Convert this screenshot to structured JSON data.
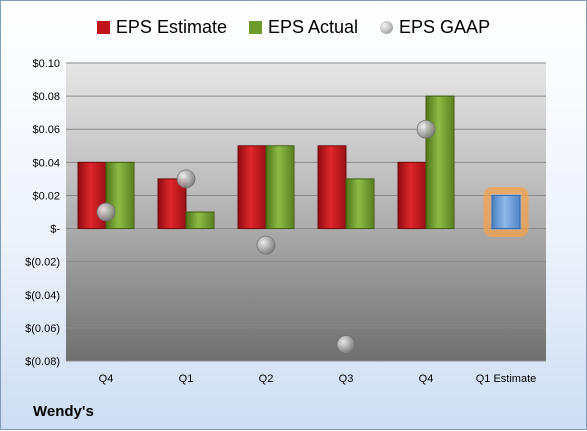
{
  "company": "Wendy's",
  "legend": {
    "estimate": "EPS Estimate",
    "actual": "EPS Actual",
    "gaap": "EPS GAAP"
  },
  "colors": {
    "estimate": "#c0141a",
    "actual": "#6e9a2a",
    "gaap": "#a8a8a8",
    "future_estimate": "#6f9fd8",
    "highlight": "#f5a04a"
  },
  "chart_data": {
    "type": "bar",
    "categories": [
      "Q4",
      "Q1",
      "Q2",
      "Q3",
      "Q4",
      "Q1 Estimate"
    ],
    "series": [
      {
        "name": "EPS Estimate",
        "values": [
          0.04,
          0.03,
          0.05,
          0.05,
          0.04,
          null
        ]
      },
      {
        "name": "EPS Actual",
        "values": [
          0.04,
          0.01,
          0.05,
          0.03,
          0.08,
          0.02
        ]
      },
      {
        "name": "EPS GAAP",
        "values": [
          0.01,
          0.03,
          -0.01,
          -0.07,
          0.06,
          null
        ]
      }
    ],
    "ylim": [
      -0.08,
      0.1
    ],
    "yticks": [
      0.1,
      0.08,
      0.06,
      0.04,
      0.02,
      0,
      -0.02,
      -0.04,
      -0.06,
      -0.08
    ],
    "ytick_labels": [
      "$0.10",
      "$0.08",
      "$0.06",
      "$0.04",
      "$0.02",
      "$-",
      "$(0.02)",
      "$(0.04)",
      "$(0.06)",
      "$(0.08)"
    ],
    "grid": true,
    "legend_position": "top"
  }
}
